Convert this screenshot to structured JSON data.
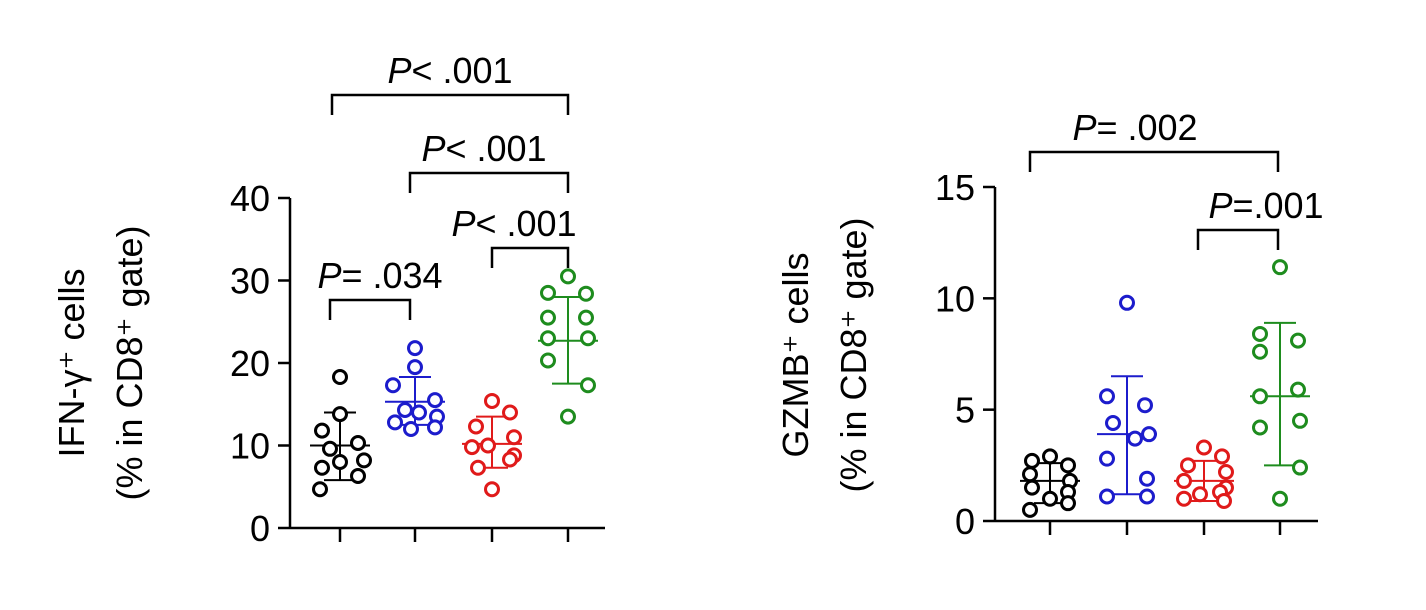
{
  "colors": {
    "group1": "#000000",
    "group2": "#1c1ccc",
    "group3": "#e01a1a",
    "group4": "#1e8c1e",
    "axis": "#000000"
  },
  "chart_data": [
    {
      "type": "scatter",
      "title": "",
      "ylabel_line1": "IFN-γ⁺ cells",
      "ylabel_line2": "(% in CD8⁺ gate)",
      "xlabel": "",
      "ylim": [
        0,
        40
      ],
      "yticks": [
        0,
        10,
        20,
        30,
        40
      ],
      "yticklabels": [
        "0",
        "10",
        "20",
        "30",
        "40"
      ],
      "categories": [
        "",
        "",
        "",
        ""
      ],
      "series": [
        {
          "values": [
            18.3,
            13.8,
            11.8,
            10.3,
            9.6,
            8.2,
            7.3,
            6.3,
            4.7,
            8.0
          ],
          "mean": 10.0,
          "sd": [
            5.8,
            14.0
          ]
        },
        {
          "values": [
            21.8,
            19.5,
            17.3,
            15.5,
            14.3,
            13.5,
            12.8,
            12.2,
            12.0,
            14.0
          ],
          "mean": 15.3,
          "sd": [
            12.5,
            18.3
          ]
        },
        {
          "values": [
            15.4,
            14.0,
            12.3,
            11.0,
            9.8,
            8.8,
            8.3,
            7.3,
            4.7,
            10.0
          ],
          "mean": 10.2,
          "sd": [
            7.3,
            13.5
          ]
        },
        {
          "values": [
            30.5,
            28.5,
            28.4,
            25.5,
            25.5,
            23.0,
            23.0,
            20.3,
            17.3,
            13.5
          ],
          "mean": 22.7,
          "sd": [
            17.5,
            28.0
          ]
        }
      ],
      "annotations": [
        {
          "groups": [
            1,
            4
          ],
          "text": "P< .001"
        },
        {
          "groups": [
            2,
            4
          ],
          "text": "P< .001"
        },
        {
          "groups": [
            3,
            4
          ],
          "text": "P< .001"
        },
        {
          "groups": [
            1,
            2
          ],
          "text": "P= .034"
        }
      ]
    },
    {
      "type": "scatter",
      "title": "",
      "ylabel_line1": "GZMB⁺ cells",
      "ylabel_line2": "(% in CD8⁺ gate)",
      "xlabel": "",
      "ylim": [
        0,
        15
      ],
      "yticks": [
        0,
        5,
        10,
        15
      ],
      "yticklabels": [
        "0",
        "5",
        "10",
        "15"
      ],
      "categories": [
        "",
        "",
        "",
        ""
      ],
      "series": [
        {
          "values": [
            2.9,
            2.7,
            2.5,
            2.1,
            1.8,
            1.5,
            1.3,
            0.8,
            0.5,
            1.0
          ],
          "mean": 1.8,
          "sd": [
            0.8,
            2.6
          ]
        },
        {
          "values": [
            9.8,
            5.6,
            5.2,
            4.4,
            3.9,
            3.7,
            2.8,
            1.9,
            1.1,
            1.1
          ],
          "mean": 3.9,
          "sd": [
            1.2,
            6.5
          ]
        },
        {
          "values": [
            3.3,
            2.9,
            2.5,
            2.2,
            1.8,
            1.5,
            1.3,
            1.0,
            0.9,
            1.2
          ],
          "mean": 1.8,
          "sd": [
            0.9,
            2.7
          ]
        },
        {
          "values": [
            11.4,
            8.4,
            8.1,
            7.6,
            5.9,
            5.6,
            4.5,
            4.2,
            2.4,
            1.0
          ],
          "mean": 5.6,
          "sd": [
            2.5,
            8.9
          ]
        }
      ],
      "annotations": [
        {
          "groups": [
            1,
            4
          ],
          "text": "P= .002"
        },
        {
          "groups": [
            3,
            4
          ],
          "text": "P=.001"
        }
      ]
    }
  ]
}
